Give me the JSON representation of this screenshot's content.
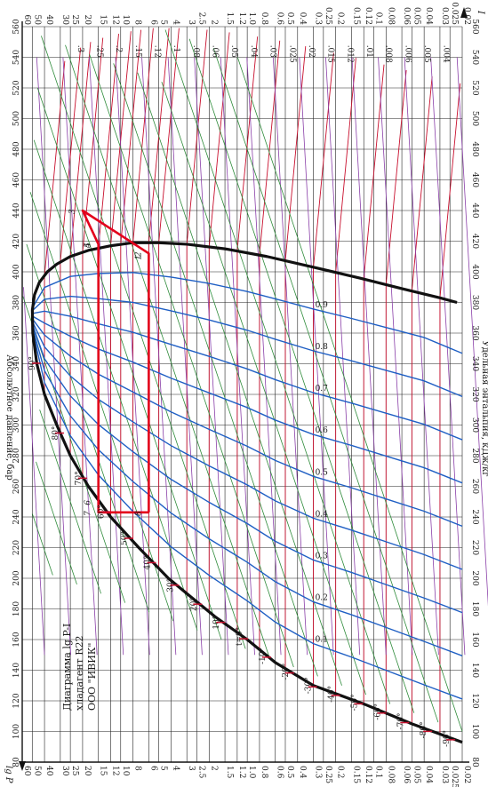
{
  "chart_data": {
    "type": "line",
    "title_lines": [
      "Диаграмма lg P-I",
      "хладагент R22",
      "ООО \"ИВИК\""
    ],
    "xlabel": "Удельная энтальпия, кДж/кг",
    "ylabel": "Абсолютное давление, бар",
    "x_axis_symbol": "I",
    "y_axis_symbol": "lg P",
    "x_ticks": [
      80,
      100,
      120,
      140,
      160,
      180,
      200,
      220,
      240,
      260,
      280,
      300,
      320,
      340,
      360,
      380,
      400,
      420,
      440,
      460,
      480,
      500,
      520,
      540,
      560
    ],
    "y_ticks": [
      {
        "v": 60,
        "label": "60"
      },
      {
        "v": 50,
        "label": "50"
      },
      {
        "v": 40,
        "label": "40"
      },
      {
        "v": 30,
        "label": "30"
      },
      {
        "v": 25,
        "label": "25"
      },
      {
        "v": 20,
        "label": "20"
      },
      {
        "v": 15,
        "label": "15"
      },
      {
        "v": 12,
        "label": "12"
      },
      {
        "v": 10,
        "label": "10"
      },
      {
        "v": 8,
        "label": "8"
      },
      {
        "v": 6,
        "label": "6"
      },
      {
        "v": 5,
        "label": "5"
      },
      {
        "v": 4,
        "label": "4"
      },
      {
        "v": 3,
        "label": "3"
      },
      {
        "v": 2.5,
        "label": "2.5"
      },
      {
        "v": 2,
        "label": "2"
      },
      {
        "v": 1.5,
        "label": "1.5"
      },
      {
        "v": 1.2,
        "label": "1.2"
      },
      {
        "v": 1.0,
        "label": "1.0"
      },
      {
        "v": 0.8,
        "label": "0.8"
      },
      {
        "v": 0.6,
        "label": "0.6"
      },
      {
        "v": 0.5,
        "label": "0.5"
      },
      {
        "v": 0.4,
        "label": "0.4"
      },
      {
        "v": 0.3,
        "label": "0.3"
      },
      {
        "v": 0.25,
        "label": "0.25"
      },
      {
        "v": 0.2,
        "label": "0.2"
      },
      {
        "v": 0.15,
        "label": "0.15"
      },
      {
        "v": 0.12,
        "label": "0.12"
      },
      {
        "v": 0.1,
        "label": "0.1"
      },
      {
        "v": 0.08,
        "label": "0.08"
      },
      {
        "v": 0.06,
        "label": "0.06"
      },
      {
        "v": 0.05,
        "label": "0.05"
      },
      {
        "v": 0.04,
        "label": "0.04"
      },
      {
        "v": 0.03,
        "label": "0.03"
      },
      {
        "v": 0.025,
        "label": "0.025"
      },
      {
        "v": 0.02,
        "label": "0.02"
      }
    ],
    "xlim": [
      80,
      560
    ],
    "ylim": [
      0.02,
      60
    ],
    "y_scale": "log",
    "saturation_dome": {
      "liquid": [
        [
          93,
          0.02
        ],
        [
          105,
          0.05
        ],
        [
          118,
          0.12
        ],
        [
          130,
          0.3
        ],
        [
          145,
          0.6
        ],
        [
          160,
          1.0
        ],
        [
          175,
          1.8
        ],
        [
          190,
          3.0
        ],
        [
          200,
          4.2
        ],
        [
          210,
          5.5
        ],
        [
          220,
          7.2
        ],
        [
          240,
          12
        ],
        [
          260,
          18
        ],
        [
          280,
          25
        ],
        [
          300,
          32
        ],
        [
          320,
          40
        ],
        [
          340,
          46
        ],
        [
          360,
          49.5
        ],
        [
          375,
          49.9
        ]
      ],
      "vapor": [
        [
          375,
          49.9
        ],
        [
          385,
          48
        ],
        [
          393,
          44
        ],
        [
          400,
          38
        ],
        [
          405,
          32
        ],
        [
          410,
          25
        ],
        [
          414,
          18
        ],
        [
          417,
          12
        ],
        [
          419,
          8
        ],
        [
          419,
          5
        ],
        [
          418,
          3
        ],
        [
          415,
          1.5
        ],
        [
          410,
          0.7
        ],
        [
          403,
          0.3
        ],
        [
          396,
          0.13
        ],
        [
          389,
          0.06
        ],
        [
          383,
          0.03
        ],
        [
          380,
          0.022
        ]
      ]
    },
    "cycle": {
      "points": [
        {
          "label": "1",
          "i": 410,
          "p": 6.0
        },
        {
          "label": "2",
          "i": 412,
          "p": 6.0
        },
        {
          "label": "3",
          "i": 440,
          "p": 20
        },
        {
          "label": "4",
          "i": 418,
          "p": 15
        },
        {
          "label": "5",
          "i": 418,
          "p": 15
        },
        {
          "label": "6",
          "i": 250,
          "p": 15
        },
        {
          "label": "7",
          "i": 243,
          "p": 15
        },
        {
          "label": "8",
          "i": 243,
          "p": 6.0
        }
      ],
      "path_order": [
        "8",
        "7",
        "6",
        "5",
        "4",
        "3",
        "2",
        "1",
        "8"
      ]
    },
    "isotherm_labels": [
      "-90°",
      "-80°",
      "-70°",
      "-60°",
      "-50°",
      "-40°",
      "-30°",
      "-20°",
      "-10°",
      "t=0°",
      "10°",
      "20°",
      "30°",
      "40°",
      "50°",
      "60°",
      "70°",
      "80°",
      "90°"
    ],
    "quality_labels": [
      "0.1",
      "0.2",
      "0.3",
      "0.4",
      "0.5",
      "0.6",
      "0.7",
      "0.8",
      "0.9"
    ],
    "volume_labels": [
      ".004",
      ".005",
      ".006",
      ".008",
      ".01",
      ".012",
      ".015",
      ".02",
      ".025",
      ".03",
      ".04",
      ".05",
      ".06",
      ".08",
      ".1",
      ".12",
      ".15",
      ".2",
      ".25",
      ".3"
    ],
    "series_colors": {
      "isotherms": "#c8102e",
      "isentropes": "#2e8b3a",
      "isochores": "#8a3fa8",
      "quality": "#1f5fc4",
      "dome": "#111111",
      "cycle": "#e3001b",
      "grid": "#222222"
    },
    "grid": true
  }
}
